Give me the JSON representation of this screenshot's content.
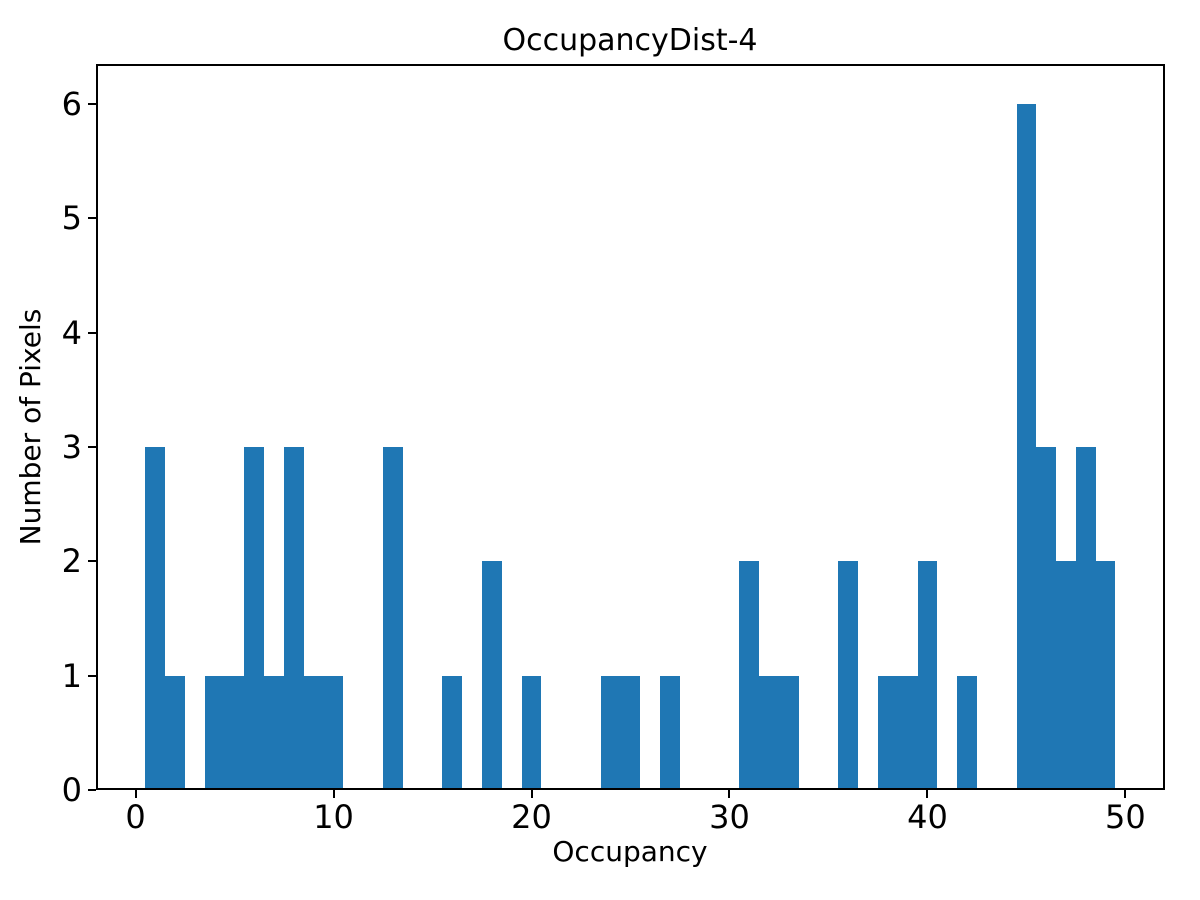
{
  "figure": {
    "background": "#ffffff"
  },
  "chart_data": {
    "type": "bar",
    "subtype": "histogram",
    "title": "OccupancyDist-4",
    "xlabel": "Occupancy",
    "ylabel": "Number of Pixels",
    "bar_color": "#1f77b4",
    "axis_color": "#000000",
    "grid": false,
    "legend": "none",
    "xlim": [
      -2,
      52
    ],
    "ylim": [
      0,
      6.35
    ],
    "xticks": [
      0,
      10,
      20,
      30,
      40,
      50
    ],
    "yticks": [
      0,
      1,
      2,
      3,
      4,
      5,
      6
    ],
    "bin_width": 1,
    "bars": [
      {
        "x0": 0.5,
        "x1": 1.5,
        "count": 3
      },
      {
        "x0": 1.5,
        "x1": 2.5,
        "count": 1
      },
      {
        "x0": 3.5,
        "x1": 4.5,
        "count": 1
      },
      {
        "x0": 4.5,
        "x1": 5.5,
        "count": 1
      },
      {
        "x0": 5.5,
        "x1": 6.5,
        "count": 3
      },
      {
        "x0": 6.5,
        "x1": 7.5,
        "count": 1
      },
      {
        "x0": 7.5,
        "x1": 8.5,
        "count": 3
      },
      {
        "x0": 8.5,
        "x1": 9.5,
        "count": 1
      },
      {
        "x0": 9.5,
        "x1": 10.5,
        "count": 1
      },
      {
        "x0": 12.5,
        "x1": 13.5,
        "count": 3
      },
      {
        "x0": 15.5,
        "x1": 16.5,
        "count": 1
      },
      {
        "x0": 17.5,
        "x1": 18.5,
        "count": 2
      },
      {
        "x0": 19.5,
        "x1": 20.5,
        "count": 1
      },
      {
        "x0": 23.5,
        "x1": 24.5,
        "count": 1
      },
      {
        "x0": 24.5,
        "x1": 25.5,
        "count": 1
      },
      {
        "x0": 26.5,
        "x1": 27.5,
        "count": 1
      },
      {
        "x0": 30.5,
        "x1": 31.5,
        "count": 2
      },
      {
        "x0": 31.5,
        "x1": 32.5,
        "count": 1
      },
      {
        "x0": 32.5,
        "x1": 33.5,
        "count": 1
      },
      {
        "x0": 35.5,
        "x1": 36.5,
        "count": 2
      },
      {
        "x0": 37.5,
        "x1": 38.5,
        "count": 1
      },
      {
        "x0": 38.5,
        "x1": 39.5,
        "count": 1
      },
      {
        "x0": 39.5,
        "x1": 40.5,
        "count": 2
      },
      {
        "x0": 41.5,
        "x1": 42.5,
        "count": 1
      },
      {
        "x0": 44.5,
        "x1": 45.5,
        "count": 6
      },
      {
        "x0": 45.5,
        "x1": 46.5,
        "count": 3
      },
      {
        "x0": 46.5,
        "x1": 47.5,
        "count": 2
      },
      {
        "x0": 47.5,
        "x1": 48.5,
        "count": 3
      },
      {
        "x0": 48.5,
        "x1": 49.5,
        "count": 2
      }
    ]
  }
}
